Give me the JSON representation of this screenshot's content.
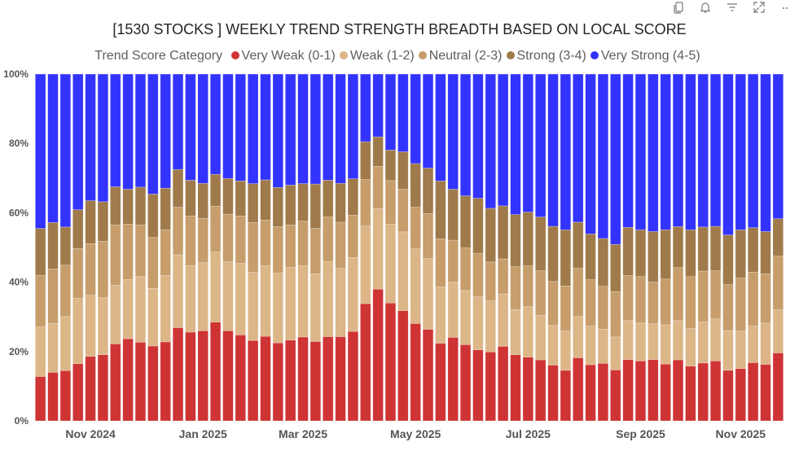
{
  "toolbar": {
    "icons": [
      "copy-icon",
      "bell-icon",
      "filter-icon",
      "focus-mode-icon",
      "more-options-icon"
    ]
  },
  "chart_data": {
    "type": "bar",
    "stacked": "100%",
    "title": "[1530 STOCKS ] WEEKLY TREND STRENGTH BREADTH BASED ON LOCAL SCORE",
    "legend_title": "Trend Score Category",
    "legend_position": "top-center",
    "xlabel": "",
    "ylabel": "",
    "ylim": [
      0,
      100
    ],
    "yticks": [
      "0%",
      "20%",
      "40%",
      "60%",
      "80%",
      "100%"
    ],
    "ytick_values": [
      0,
      20,
      40,
      60,
      80,
      100
    ],
    "xticks": [
      {
        "label": "Nov 2024",
        "index": 4
      },
      {
        "label": "Jan 2025",
        "index": 13
      },
      {
        "label": "Mar 2025",
        "index": 21
      },
      {
        "label": "May 2025",
        "index": 30
      },
      {
        "label": "Jul 2025",
        "index": 39
      },
      {
        "label": "Sep 2025",
        "index": 48
      },
      {
        "label": "Nov 2025",
        "index": 56
      }
    ],
    "n_weeks": 60,
    "series": [
      {
        "name": "Very Weak (0-1)",
        "color": "#CF3434",
        "values": [
          12.8,
          14.0,
          14.5,
          16.5,
          18.6,
          19.1,
          22.2,
          23.7,
          22.7,
          21.6,
          22.8,
          26.9,
          25.6,
          26.0,
          28.5,
          26.0,
          24.8,
          23.2,
          24.4,
          22.5,
          23.3,
          24.2,
          22.9,
          24.3,
          24.3,
          25.8,
          33.8,
          38.0,
          34.0,
          31.8,
          28.1,
          26.4,
          22.4,
          24.1,
          22.0,
          20.5,
          19.9,
          21.5,
          19.1,
          18.4,
          17.6,
          16.1,
          14.6,
          18.2,
          16.2,
          16.6,
          14.7,
          17.7,
          17.3,
          17.7,
          16.4,
          17.6,
          15.8,
          16.7,
          17.3,
          14.6,
          15.1,
          16.8,
          16.3,
          19.6
        ]
      },
      {
        "name": "Weak (1-2)",
        "color": "#DCB687",
        "values": [
          14.3,
          14.1,
          15.6,
          18.8,
          17.6,
          16.4,
          16.9,
          17.0,
          18.9,
          16.6,
          19.1,
          21.0,
          19.2,
          19.6,
          20.2,
          19.9,
          20.6,
          19.6,
          20.3,
          20.1,
          20.9,
          20.5,
          19.5,
          21.6,
          19.7,
          21.3,
          22.4,
          23.2,
          22.7,
          22.7,
          21.5,
          20.4,
          16.2,
          15.9,
          15.6,
          15.3,
          14.7,
          15.1,
          13.0,
          14.5,
          12.8,
          11.4,
          11.3,
          11.9,
          11.1,
          9.8,
          9.5,
          11.2,
          10.9,
          10.3,
          11.3,
          11.3,
          10.8,
          11.8,
          12.1,
          11.4,
          10.8,
          10.5,
          11.9,
          12.4
        ]
      },
      {
        "name": "Neutral (2-3)",
        "color": "#C69D6B",
        "values": [
          14.9,
          15.7,
          14.8,
          14.4,
          14.9,
          16.3,
          17.4,
          16.0,
          14.9,
          14.7,
          13.2,
          13.7,
          14.3,
          12.8,
          13.2,
          13.7,
          13.7,
          14.4,
          13.2,
          13.4,
          12.3,
          12.9,
          13.1,
          12.9,
          13.3,
          12.2,
          13.4,
          12.2,
          12.6,
          12.3,
          12.0,
          13.0,
          13.9,
          12.1,
          12.3,
          12.5,
          11.2,
          10.1,
          12.4,
          11.8,
          12.9,
          12.7,
          13.0,
          13.9,
          13.4,
          12.4,
          13.1,
          13.0,
          13.4,
          12.0,
          13.2,
          15.3,
          15.0,
          14.7,
          13.9,
          13.3,
          15.3,
          15.6,
          14.2,
          15.5
        ]
      },
      {
        "name": "Strong (3-4)",
        "color": "#A07A4A",
        "values": [
          13.5,
          13.4,
          11.0,
          11.2,
          12.4,
          11.4,
          11.0,
          10.1,
          10.9,
          12.5,
          12.0,
          10.9,
          10.3,
          10.1,
          9.2,
          10.3,
          10.1,
          11.2,
          11.6,
          11.3,
          11.5,
          10.8,
          12.8,
          10.6,
          11.2,
          10.5,
          10.9,
          8.5,
          8.8,
          10.8,
          12.6,
          13.1,
          16.7,
          14.7,
          15.0,
          15.9,
          15.5,
          15.3,
          15.0,
          15.5,
          15.5,
          15.9,
          16.2,
          13.3,
          13.2,
          13.8,
          13.6,
          13.9,
          13.5,
          14.6,
          14.2,
          11.8,
          13.5,
          12.7,
          12.8,
          14.3,
          13.9,
          12.8,
          12.2,
          10.8
        ]
      },
      {
        "name": "Very Strong (4-5)",
        "color": "#3333FF",
        "values": [
          44.5,
          42.8,
          44.1,
          39.1,
          36.5,
          36.8,
          32.5,
          33.2,
          32.6,
          34.6,
          32.9,
          27.5,
          30.6,
          31.5,
          28.9,
          30.1,
          30.8,
          31.6,
          30.5,
          32.7,
          32.0,
          31.6,
          31.7,
          30.6,
          31.5,
          30.2,
          19.5,
          18.1,
          21.9,
          22.4,
          25.8,
          27.1,
          30.8,
          33.2,
          35.1,
          35.8,
          38.7,
          38.0,
          40.5,
          39.8,
          41.2,
          43.9,
          44.9,
          42.7,
          46.1,
          47.4,
          49.1,
          44.2,
          44.9,
          45.4,
          44.9,
          44.0,
          44.9,
          44.1,
          43.9,
          46.4,
          44.9,
          44.3,
          45.4,
          41.7
        ]
      }
    ]
  }
}
